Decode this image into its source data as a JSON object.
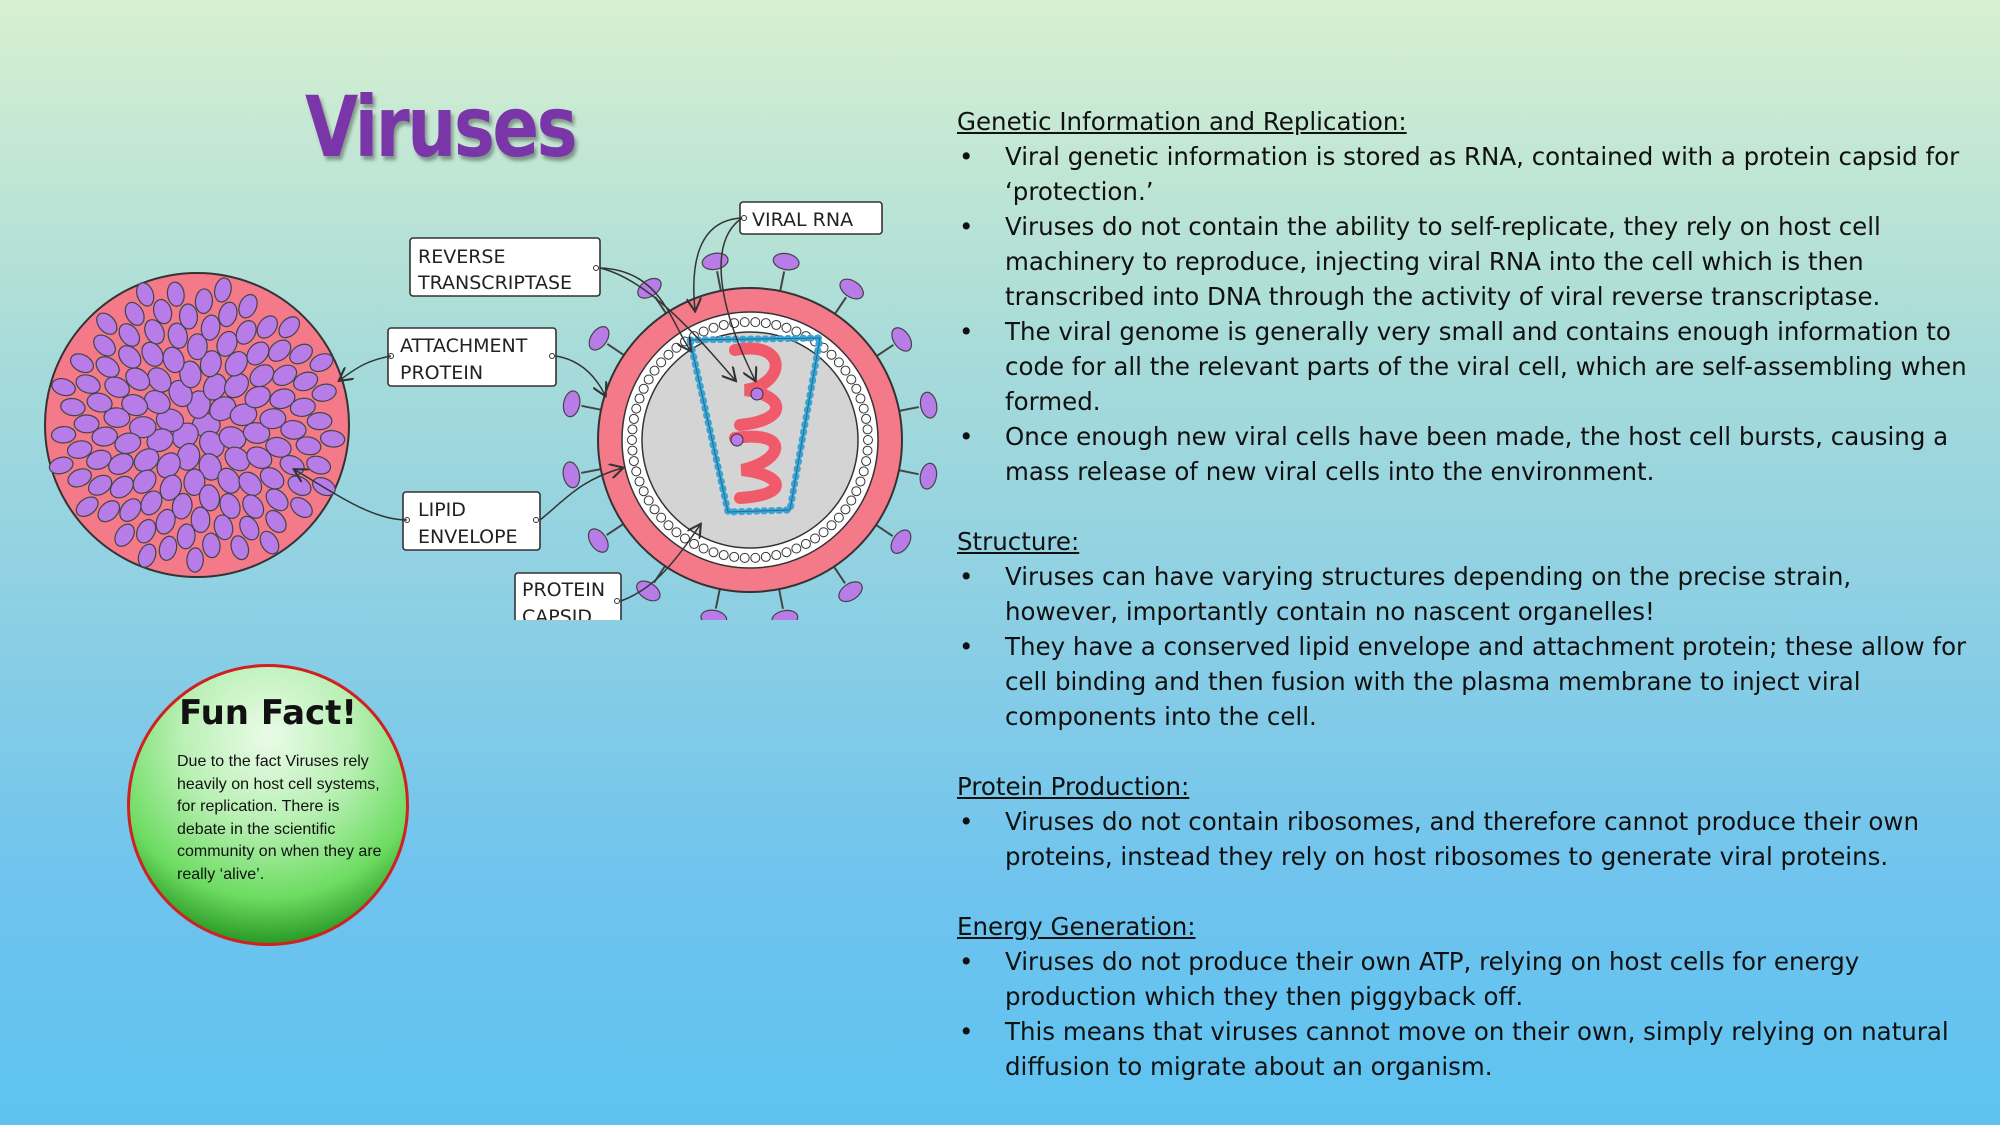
{
  "title": "Viruses",
  "diagram": {
    "labels": {
      "viral_rna": "VIRAL  RNA",
      "reverse_transcriptase": [
        "REVERSE",
        "TRANSCRIPTASE"
      ],
      "attachment_protein": [
        "ATTACHMENT",
        "PROTEIN"
      ],
      "lipid_envelope": [
        "LIPID",
        "ENVELOPE"
      ],
      "protein_capsid": [
        "PROTEIN",
        "CAPSID"
      ]
    },
    "colors": {
      "envelope_pink": "#f47a8a",
      "protein_purple": "#b77ce8",
      "capsid_blue": "#3aa4d4",
      "rna_red": "#f05a6a",
      "interior_gray": "#d4d4d4"
    }
  },
  "fun_fact": {
    "title": "Fun Fact!",
    "body": "Due to the fact Viruses rely heavily on host cell systems, for replication. There is debate in the scientific community on when they are really ‘alive’."
  },
  "sections": [
    {
      "heading": "Genetic Information and Replication:",
      "bullets": [
        "Viral genetic information is stored as RNA, contained with a protein capsid for ‘protection.’",
        "Viruses do not contain the ability to self-replicate, they rely on host cell machinery to reproduce, injecting viral RNA into the cell which is then transcribed into DNA through the activity of viral reverse transcriptase.",
        "The viral genome is generally very small and contains enough information to code for all the relevant parts of the viral cell, which are self-assembling when formed.",
        "Once enough new viral cells have been made, the host cell bursts, causing a mass release of new viral cells into the environment."
      ]
    },
    {
      "heading": "Structure:",
      "bullets": [
        "Viruses can have varying structures depending on the precise strain, however, importantly contain no nascent organelles!",
        "They have a conserved lipid envelope and attachment protein; these allow for cell binding and then fusion with the plasma membrane to inject viral components into the cell."
      ]
    },
    {
      "heading": "Protein Production:",
      "bullets": [
        "Viruses do not contain ribosomes, and therefore cannot produce their own proteins, instead they rely on host ribosomes to generate viral proteins."
      ]
    },
    {
      "heading": "Energy Generation:",
      "bullets": [
        "Viruses do not produce their own ATP, relying on host cells for energy production which they then piggyback off.",
        "This means that viruses cannot move on their own, simply relying on natural diffusion to migrate about an organism."
      ]
    }
  ]
}
